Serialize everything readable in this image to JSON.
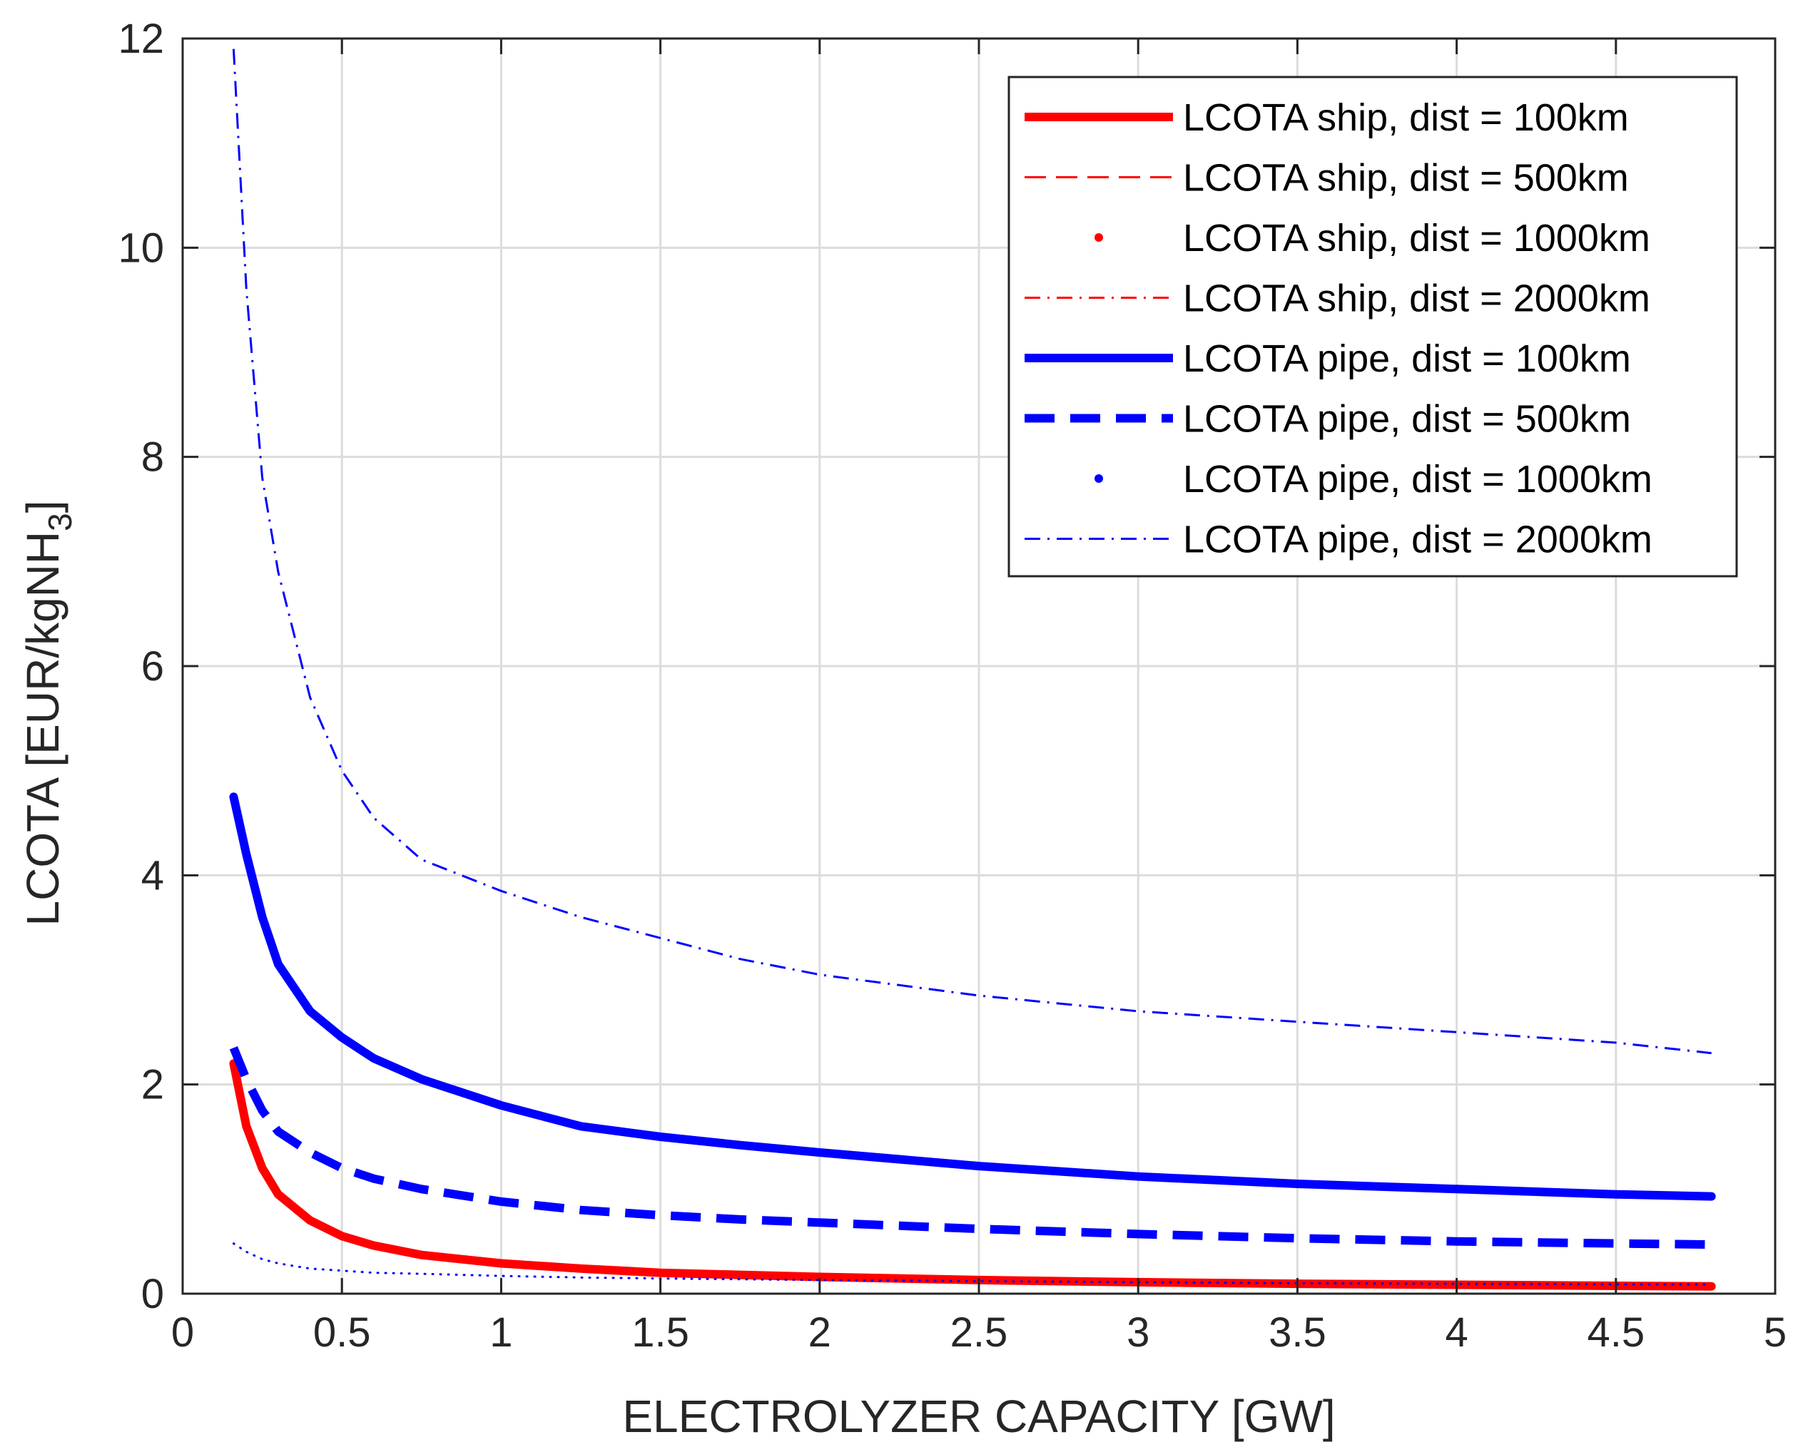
{
  "chart_data": {
    "type": "line",
    "title": "",
    "xlabel": "ELECTROLYZER CAPACITY [GW]",
    "ylabel_main": "LCOTA [EUR/kgNH",
    "ylabel_sub": "3",
    "ylabel_close": "]",
    "xlim": [
      0,
      5
    ],
    "ylim": [
      0,
      12
    ],
    "xticks": [
      0,
      0.5,
      1,
      1.5,
      2,
      2.5,
      3,
      3.5,
      4,
      4.5,
      5
    ],
    "yticks": [
      0,
      2,
      4,
      6,
      8,
      10,
      12
    ],
    "xtick_labels": [
      "0",
      "0.5",
      "1",
      "1.5",
      "2",
      "2.5",
      "3",
      "3.5",
      "4",
      "4.5",
      "5"
    ],
    "ytick_labels": [
      "0",
      "2",
      "4",
      "6",
      "8",
      "10",
      "12"
    ],
    "grid": true,
    "legend_position": "top-right",
    "x": [
      0.16,
      0.2,
      0.25,
      0.3,
      0.4,
      0.5,
      0.6,
      0.75,
      1.0,
      1.25,
      1.5,
      1.75,
      2.0,
      2.5,
      3.0,
      3.5,
      4.0,
      4.5,
      4.8
    ],
    "series": [
      {
        "name": "LCOTA ship, dist = 100km",
        "color": "#ff0000",
        "style": "solid",
        "weight": "thick",
        "values": [
          2.2,
          1.6,
          1.2,
          0.95,
          0.7,
          0.55,
          0.46,
          0.37,
          0.29,
          0.24,
          0.2,
          0.18,
          0.16,
          0.13,
          0.11,
          0.095,
          0.085,
          0.075,
          0.07
        ]
      },
      {
        "name": "LCOTA ship, dist = 500km",
        "color": "#ff0000",
        "style": "dashed",
        "weight": "thin",
        "values": [
          2.2,
          1.6,
          1.2,
          0.95,
          0.7,
          0.55,
          0.46,
          0.37,
          0.29,
          0.24,
          0.2,
          0.18,
          0.16,
          0.13,
          0.11,
          0.095,
          0.085,
          0.075,
          0.07
        ]
      },
      {
        "name": "LCOTA ship, dist = 1000km",
        "color": "#ff0000",
        "style": "dotted",
        "weight": "thin",
        "values": [
          2.2,
          1.6,
          1.2,
          0.95,
          0.7,
          0.55,
          0.46,
          0.37,
          0.29,
          0.24,
          0.2,
          0.18,
          0.16,
          0.13,
          0.11,
          0.095,
          0.085,
          0.075,
          0.07
        ]
      },
      {
        "name": "LCOTA ship, dist = 2000km",
        "color": "#ff0000",
        "style": "dashdot",
        "weight": "thin",
        "values": [
          2.2,
          1.6,
          1.2,
          0.95,
          0.7,
          0.55,
          0.46,
          0.37,
          0.29,
          0.24,
          0.2,
          0.18,
          0.16,
          0.13,
          0.11,
          0.095,
          0.085,
          0.075,
          0.07
        ]
      },
      {
        "name": "LCOTA pipe, dist = 100km",
        "color": "#0000ff",
        "style": "solid",
        "weight": "thick",
        "values": [
          4.75,
          4.2,
          3.6,
          3.15,
          2.7,
          2.45,
          2.25,
          2.05,
          1.8,
          1.6,
          1.5,
          1.42,
          1.35,
          1.22,
          1.12,
          1.05,
          1.0,
          0.95,
          0.93
        ]
      },
      {
        "name": "LCOTA pipe, dist = 500km",
        "color": "#0000ff",
        "style": "dashed",
        "weight": "thick",
        "values": [
          2.35,
          2.05,
          1.75,
          1.55,
          1.35,
          1.2,
          1.1,
          1.0,
          0.88,
          0.8,
          0.75,
          0.71,
          0.68,
          0.62,
          0.57,
          0.53,
          0.5,
          0.48,
          0.47
        ]
      },
      {
        "name": "LCOTA pipe, dist = 1000km",
        "color": "#0000ff",
        "style": "dotted",
        "weight": "thin",
        "values": [
          0.48,
          0.4,
          0.33,
          0.29,
          0.24,
          0.22,
          0.2,
          0.19,
          0.17,
          0.155,
          0.145,
          0.138,
          0.13,
          0.12,
          0.11,
          0.1,
          0.095,
          0.09,
          0.088
        ]
      },
      {
        "name": "LCOTA pipe, dist = 2000km",
        "color": "#0000ff",
        "style": "dashdot",
        "weight": "thin",
        "values": [
          11.9,
          9.6,
          7.8,
          6.9,
          5.7,
          5.0,
          4.55,
          4.15,
          3.85,
          3.6,
          3.4,
          3.2,
          3.05,
          2.85,
          2.7,
          2.6,
          2.5,
          2.4,
          2.3
        ]
      }
    ]
  }
}
